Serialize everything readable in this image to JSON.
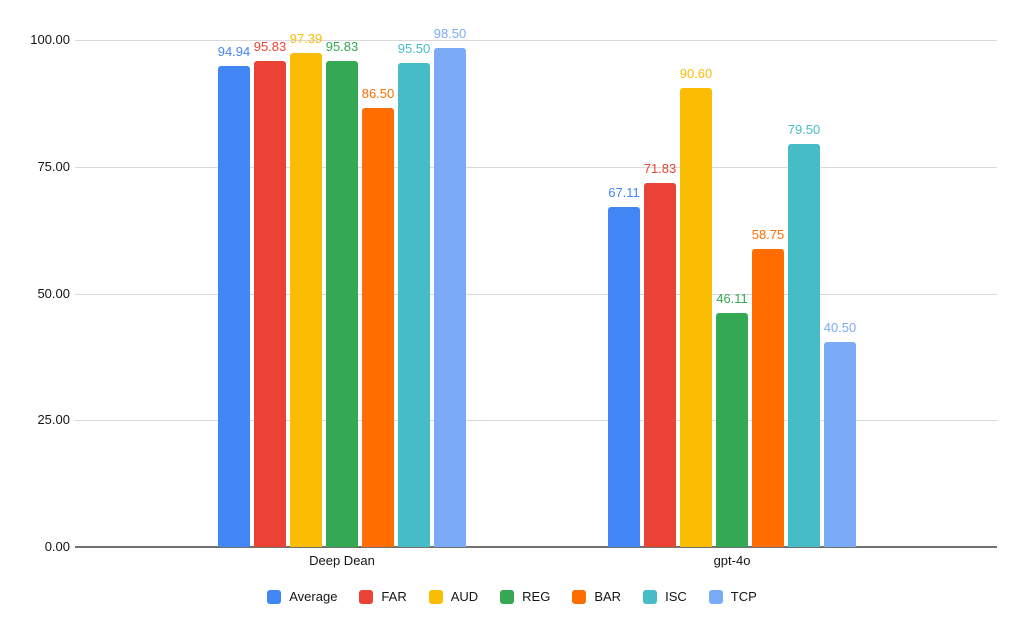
{
  "chart_data": {
    "type": "bar",
    "title": "",
    "categories": [
      "Deep Dean",
      "gpt-4o"
    ],
    "series": [
      {
        "name": "Average",
        "color": "#4285F4",
        "values": [
          94.94,
          67.11
        ]
      },
      {
        "name": "FAR",
        "color": "#EA4335",
        "values": [
          95.83,
          71.83
        ]
      },
      {
        "name": "AUD",
        "color": "#FBBC04",
        "values": [
          97.39,
          90.6
        ]
      },
      {
        "name": "REG",
        "color": "#34A853",
        "values": [
          95.83,
          46.11
        ]
      },
      {
        "name": "BAR",
        "color": "#FF6D01",
        "values": [
          86.5,
          58.75
        ]
      },
      {
        "name": "ISC",
        "color": "#46BDC6",
        "values": [
          95.5,
          79.5
        ]
      },
      {
        "name": "TCP",
        "color": "#7BAAF7",
        "values": [
          98.5,
          40.5
        ]
      }
    ],
    "value_labels": {
      "Deep Dean": [
        "94.94",
        "95.83",
        "97.39",
        "95.83",
        "86.50",
        "95.50",
        "98.50"
      ],
      "gpt-4o": [
        "67.11",
        "71.83",
        "90.60",
        "46.11",
        "58.75",
        "79.50",
        "40.50"
      ]
    },
    "xlabel": "",
    "ylabel": "",
    "ylim": [
      0,
      100
    ],
    "y_axis_ticks": [
      {
        "label": "0.00",
        "value": 0
      },
      {
        "label": "25.00",
        "value": 25
      },
      {
        "label": "50.00",
        "value": 50
      },
      {
        "label": "75.00",
        "value": 75
      },
      {
        "label": "100.00",
        "value": 100
      }
    ],
    "grid": true,
    "legend_position": "bottom",
    "colors": {
      "gridline": "#d9d9d9",
      "axis_baseline": "#717171",
      "axis_text": "#151515",
      "background": "#ffffff"
    }
  }
}
